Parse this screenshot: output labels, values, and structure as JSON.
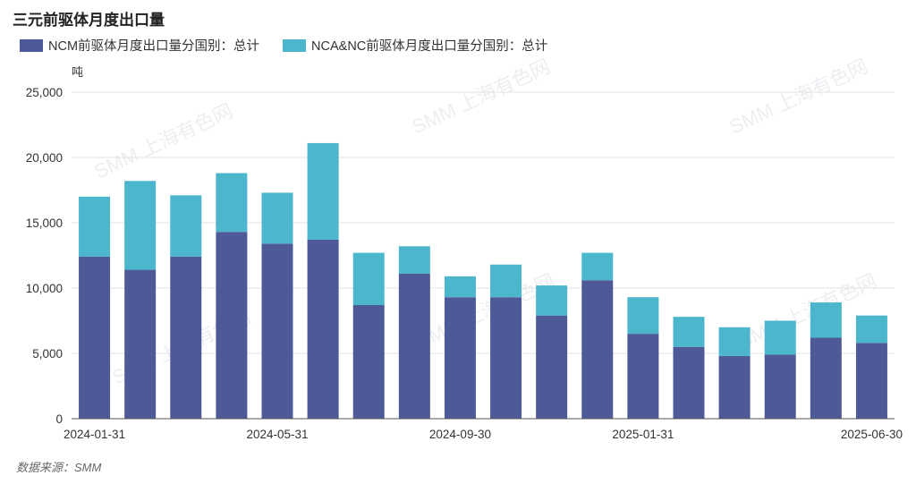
{
  "title": "三元前驱体月度出口量",
  "unit_label": "吨",
  "source": "数据来源：SMM",
  "watermark": "SMM 上海有色网",
  "colors": {
    "ncm": "#4e5a98",
    "nca": "#4bb6cc"
  },
  "chart_data": {
    "type": "bar",
    "stacked": true,
    "title": "三元前驱体月度出口量",
    "ylabel": "吨",
    "ylim": [
      0,
      25000
    ],
    "y_ticks": [
      "0",
      "5,000",
      "10,000",
      "15,000",
      "20,000",
      "25,000"
    ],
    "y_tick_values": [
      0,
      5000,
      10000,
      15000,
      20000,
      25000
    ],
    "categories": [
      "2024-01-31",
      "2024-02-29",
      "2024-03-31",
      "2024-04-30",
      "2024-05-31",
      "2024-06-30",
      "2024-07-31",
      "2024-08-31",
      "2024-09-30",
      "2024-10-31",
      "2024-11-30",
      "2024-12-31",
      "2025-01-31",
      "2025-02-28",
      "2025-03-31",
      "2025-04-30",
      "2025-05-31",
      "2025-06-30"
    ],
    "x_tick_labels": [
      "2024-01-31",
      "2024-05-31",
      "2024-09-30",
      "2025-01-31",
      "2025-06-30"
    ],
    "legend_position": "top-left",
    "grid": true,
    "series": [
      {
        "name": "NCM前驱体月度出口量分国别：总计",
        "color": "#4e5a98",
        "values": [
          12400,
          11400,
          12400,
          14300,
          13400,
          13700,
          8700,
          11100,
          9300,
          9300,
          7900,
          10600,
          6500,
          5500,
          4800,
          4900,
          6200,
          5800
        ]
      },
      {
        "name": "NCA&NC前驱体月度出口量分国别：总计",
        "color": "#4bb6cc",
        "values": [
          4600,
          6800,
          4700,
          4500,
          3900,
          7400,
          4000,
          2100,
          1600,
          2500,
          2300,
          2100,
          2800,
          2300,
          2200,
          2600,
          2700,
          2100
        ]
      }
    ]
  }
}
